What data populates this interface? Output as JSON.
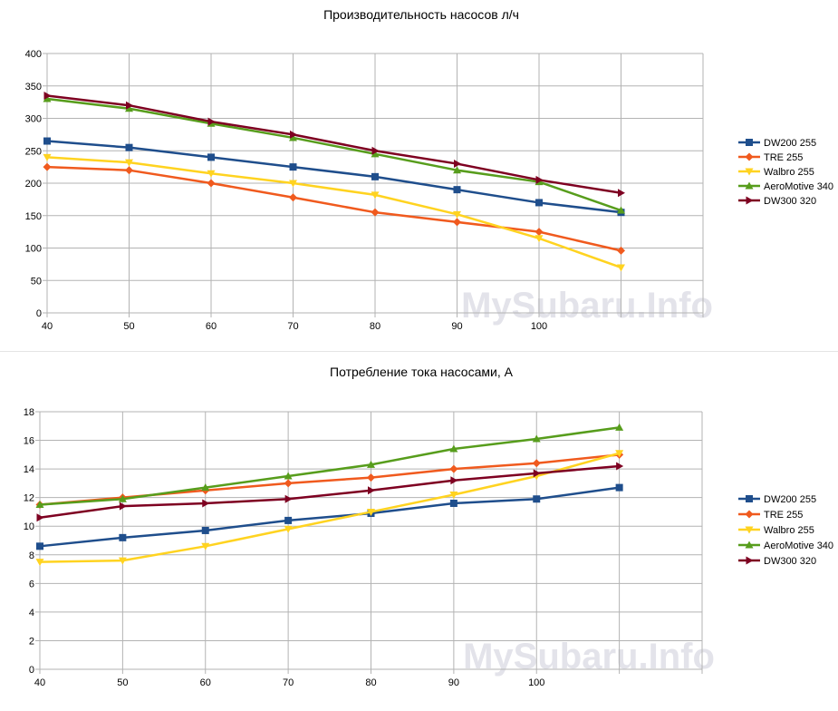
{
  "chart_data": [
    {
      "type": "line",
      "title": "Производительность насосов л/ч",
      "categories": [
        "40",
        "50",
        "60",
        "70",
        "80",
        "90",
        "100",
        ""
      ],
      "ylim": [
        0,
        400
      ],
      "yticks": [
        "0",
        "50",
        "100",
        "150",
        "200",
        "250",
        "300",
        "350",
        "400"
      ],
      "grid": true,
      "legend_position": "right",
      "watermark": "MySubaru.Info",
      "series": [
        {
          "name": "DW200 255",
          "color": "#1f4e8c",
          "marker": "square",
          "values": [
            265,
            255,
            240,
            225,
            210,
            190,
            170,
            155
          ]
        },
        {
          "name": "TRE 255",
          "color": "#f05a1e",
          "marker": "diamond",
          "values": [
            225,
            220,
            200,
            178,
            155,
            140,
            125,
            96
          ]
        },
        {
          "name": "Walbro 255",
          "color": "#ffd320",
          "marker": "triangle-down",
          "values": [
            240,
            232,
            215,
            200,
            182,
            152,
            115,
            70
          ]
        },
        {
          "name": "AeroMotive 340",
          "color": "#579d1c",
          "marker": "triangle-up",
          "values": [
            330,
            315,
            292,
            270,
            245,
            220,
            202,
            158
          ]
        },
        {
          "name": "DW300 320",
          "color": "#7e0021",
          "marker": "triangle-right",
          "values": [
            335,
            320,
            295,
            275,
            250,
            230,
            205,
            185
          ]
        }
      ]
    },
    {
      "type": "line",
      "title": "Потребление тока насосами, А",
      "categories": [
        "40",
        "50",
        "60",
        "70",
        "80",
        "90",
        "100",
        ""
      ],
      "ylim": [
        0,
        18
      ],
      "yticks": [
        "0",
        "2",
        "4",
        "6",
        "8",
        "10",
        "12",
        "14",
        "16",
        "18"
      ],
      "grid": true,
      "legend_position": "right",
      "watermark": "MySubaru.Info",
      "series": [
        {
          "name": "DW200 255",
          "color": "#1f4e8c",
          "marker": "square",
          "values": [
            8.6,
            9.2,
            9.7,
            10.4,
            10.9,
            11.6,
            11.9,
            12.7
          ]
        },
        {
          "name": "TRE 255",
          "color": "#f05a1e",
          "marker": "diamond",
          "values": [
            11.5,
            12.0,
            12.5,
            13.0,
            13.4,
            14.0,
            14.4,
            15.0
          ]
        },
        {
          "name": "Walbro 255",
          "color": "#ffd320",
          "marker": "triangle-down",
          "values": [
            7.5,
            7.6,
            8.6,
            9.8,
            11.0,
            12.2,
            13.5,
            15.1
          ]
        },
        {
          "name": "AeroMotive 340",
          "color": "#579d1c",
          "marker": "triangle-up",
          "values": [
            11.5,
            11.9,
            12.7,
            13.5,
            14.3,
            15.4,
            16.1,
            16.9
          ]
        },
        {
          "name": "DW300 320",
          "color": "#7e0021",
          "marker": "triangle-right",
          "values": [
            10.6,
            11.4,
            11.6,
            11.9,
            12.5,
            13.2,
            13.7,
            14.2
          ]
        }
      ]
    }
  ]
}
